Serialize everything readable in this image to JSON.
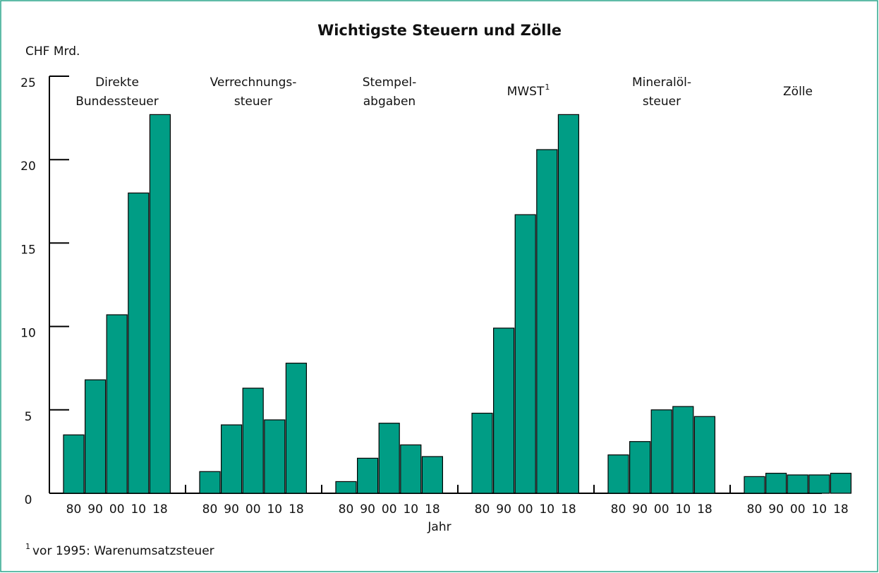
{
  "chart_data": {
    "type": "grouped-bar",
    "title": "Wichtigste Steuern und Zölle",
    "y_label": "CHF Mrd.",
    "x_label": "Jahr",
    "categories": [
      "80",
      "90",
      "00",
      "10",
      "18"
    ],
    "color": "#009d85",
    "ylim": [
      0,
      25
    ],
    "yticks": [
      0,
      5,
      10,
      15,
      20,
      25
    ],
    "groups": [
      {
        "name_lines": [
          "Direkte",
          "Bundessteuer"
        ],
        "values": [
          3.5,
          6.8,
          10.7,
          18.0,
          22.7
        ]
      },
      {
        "name_lines": [
          "Verrechnungs-",
          "steuer"
        ],
        "values": [
          1.3,
          4.1,
          6.3,
          4.4,
          7.8
        ]
      },
      {
        "name_lines": [
          "Stempel-",
          "abgaben"
        ],
        "values": [
          0.7,
          2.1,
          4.2,
          2.9,
          2.2
        ]
      },
      {
        "name_lines": [
          "MWST"
        ],
        "footnote_mark": "1",
        "values": [
          4.8,
          9.9,
          16.7,
          20.6,
          22.7
        ]
      },
      {
        "name_lines": [
          "Mineralöl-",
          "steuer"
        ],
        "values": [
          2.3,
          3.1,
          5.0,
          5.2,
          4.6
        ]
      },
      {
        "name_lines": [
          "Zölle"
        ],
        "values": [
          1.0,
          1.2,
          1.1,
          1.1,
          1.2
        ]
      }
    ],
    "footnote": {
      "mark": "1",
      "text": "vor 1995: Warenumsatzsteuer"
    }
  }
}
